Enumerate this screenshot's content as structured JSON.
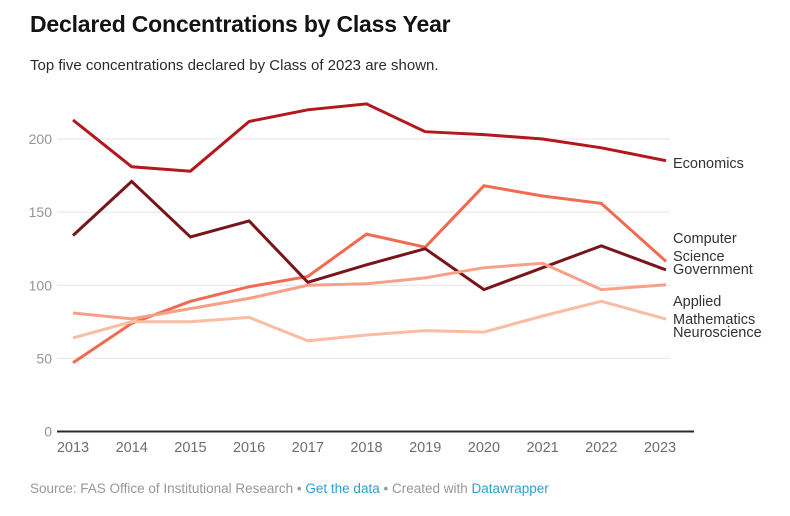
{
  "header": {
    "title": "Declared Concentrations by Class Year",
    "subtitle": "Top five concentrations declared by Class of 2023 are shown."
  },
  "chart_data": {
    "type": "line",
    "title": "Declared Concentrations by Class Year",
    "subtitle": "Top five concentrations declared by Class of 2023 are shown.",
    "categories": [
      "2013",
      "2014",
      "2015",
      "2016",
      "2017",
      "2018",
      "2019",
      "2020",
      "2021",
      "2022",
      "2023"
    ],
    "y_ticks": [
      0,
      50,
      100,
      150,
      200
    ],
    "ylim": [
      0,
      230
    ],
    "grid": "horizontal",
    "legend_position": "right-edge-labels",
    "series": [
      {
        "name": "Economics",
        "color": "#b2181d",
        "values": [
          213,
          181,
          178,
          212,
          220,
          224,
          205,
          203,
          200,
          194,
          186
        ]
      },
      {
        "name": "Computer Science",
        "color": "#f06b52",
        "values": [
          47,
          74,
          89,
          99,
          106,
          135,
          126,
          168,
          161,
          156,
          120
        ]
      },
      {
        "name": "Government",
        "color": "#77151a",
        "values": [
          134,
          171,
          133,
          144,
          102,
          114,
          125,
          97,
          112,
          127,
          112
        ]
      },
      {
        "name": "Applied Mathematics",
        "color": "#f7a088",
        "values": [
          81,
          77,
          84,
          91,
          100,
          101,
          105,
          112,
          115,
          97,
          100
        ]
      },
      {
        "name": "Neuroscience",
        "color": "#f9bda4",
        "values": [
          64,
          75,
          75,
          78,
          62,
          66,
          69,
          68,
          79,
          89,
          78
        ]
      }
    ]
  },
  "colors": {
    "grid": "#e4e4e4",
    "axis_baseline": "#2b2b2b",
    "y_tick_label": "#949494",
    "x_tick_label": "#6e6e6e",
    "series_label": "#333333",
    "footer_text": "#979797",
    "link": "#2e9fd4"
  },
  "footer": {
    "source_label": "Source:",
    "source": "FAS Office of Institutional Research",
    "separator": "•",
    "get_data": "Get the data",
    "created_with": "Created with",
    "datawrapper": "Datawrapper"
  }
}
